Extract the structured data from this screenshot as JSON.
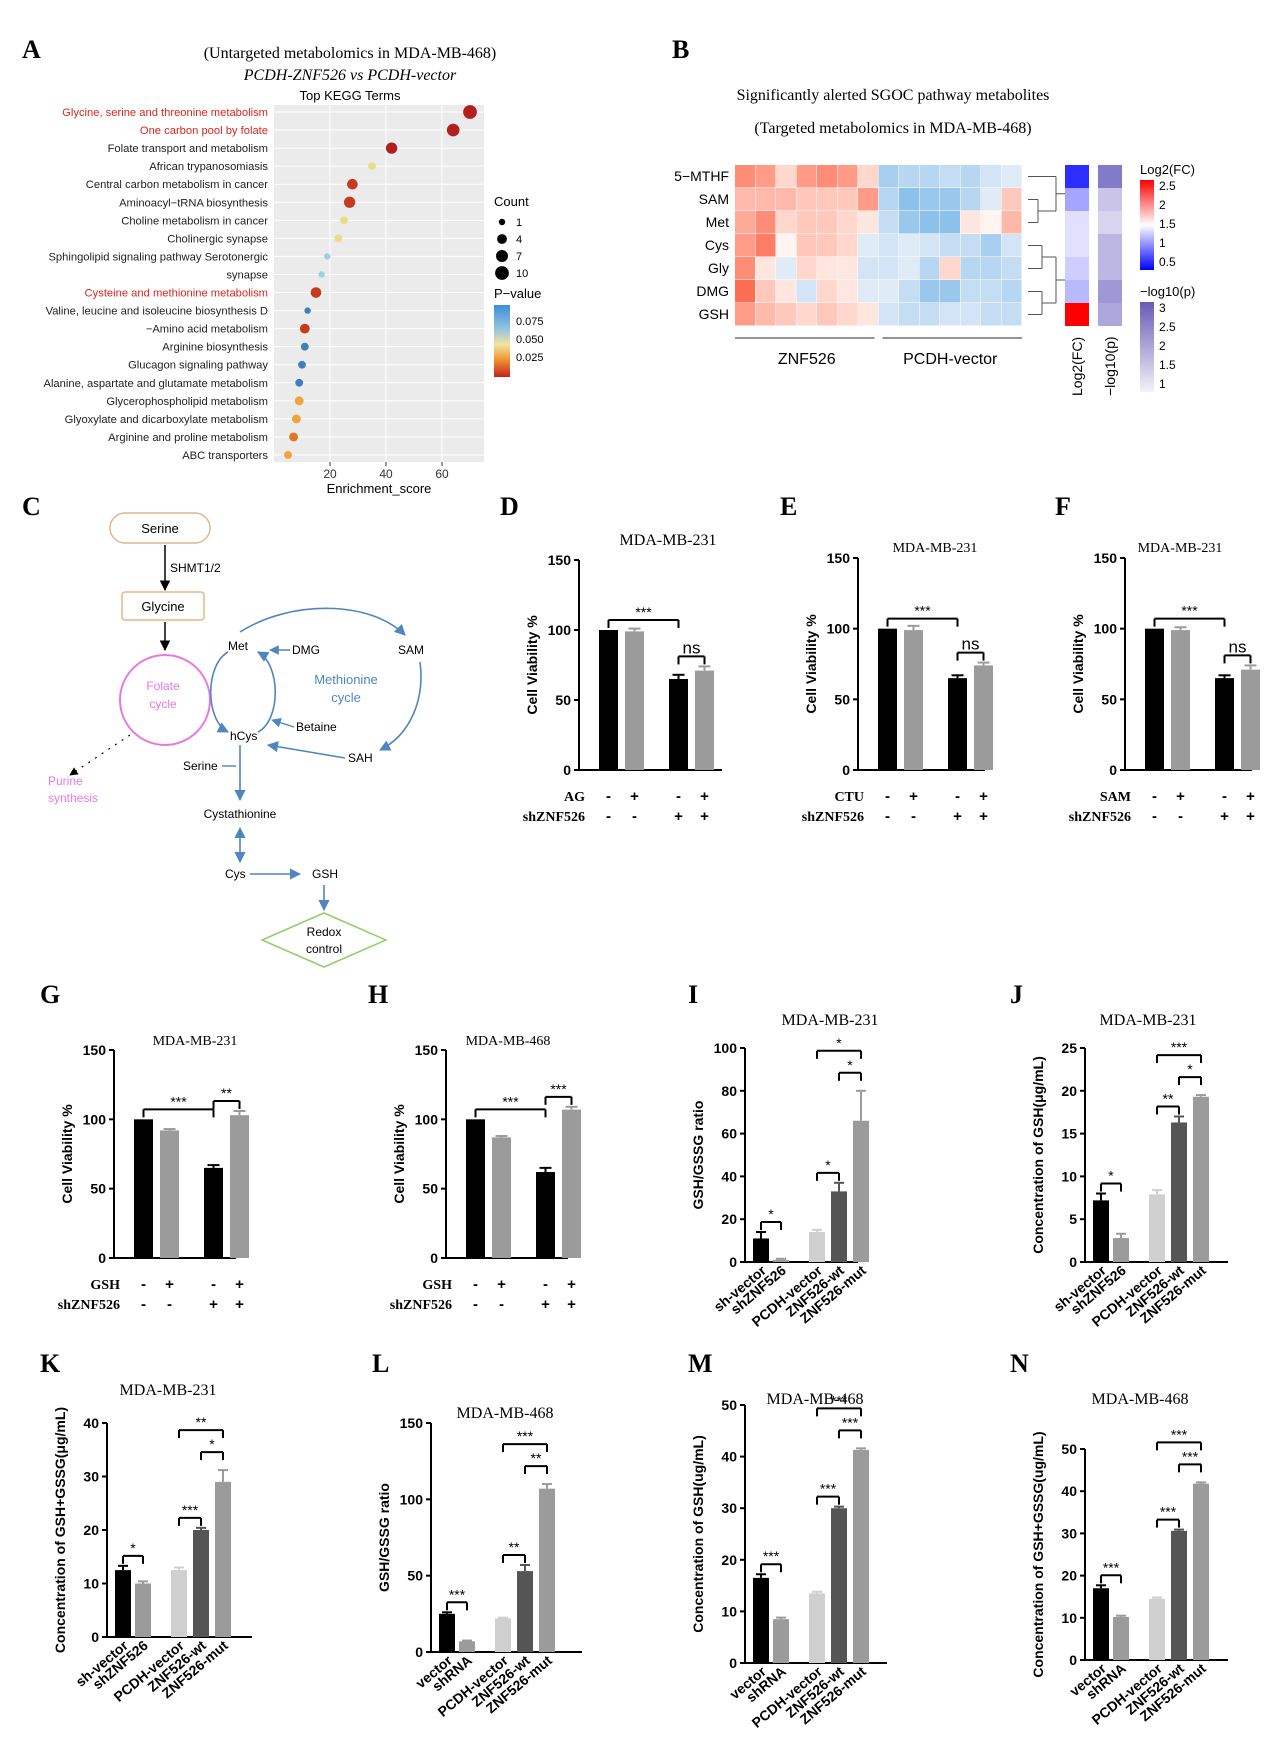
{
  "figure": {
    "panel_letters": [
      "A",
      "B",
      "C",
      "D",
      "E",
      "F",
      "G",
      "H",
      "I",
      "J",
      "K",
      "L",
      "M",
      "N"
    ]
  },
  "colors": {
    "black": "#000000",
    "mid_gray": "#9b9b9b",
    "dark_gray": "#555555",
    "light_gray": "#cfcfcf",
    "red_text": "#d9261c",
    "pink": "#e878e0",
    "blue_line": "#4f86c0",
    "green": "#8fce6a",
    "serine_border": "#e5b68a"
  },
  "chart_data": [
    {
      "id": "A",
      "type": "scatter",
      "title_lines": [
        "(Untargeted metabolomics in MDA-MB-468)",
        "PCDH-ZNF526 vs PCDH-vector"
      ],
      "subtitle": "Top KEGG Terms",
      "xlabel": "Enrichment_score",
      "xlim": [
        0,
        75
      ],
      "xticks": [
        20,
        40,
        60
      ],
      "terms": [
        {
          "name": "Glycine, serine and threonine metabolism",
          "score": 70,
          "count": 10,
          "p": 0.001,
          "highlight": true
        },
        {
          "name": "One carbon pool by folate",
          "score": 64,
          "count": 8,
          "p": 0.002,
          "highlight": true
        },
        {
          "name": "Folate transport and metabolism",
          "score": 42,
          "count": 6,
          "p": 0.005,
          "highlight": false
        },
        {
          "name": "African trypanosomiasis",
          "score": 35,
          "count": 2,
          "p": 0.05,
          "highlight": false
        },
        {
          "name": "Central carbon metabolism in cancer",
          "score": 28,
          "count": 5,
          "p": 0.01,
          "highlight": false
        },
        {
          "name": "Aminoacyl−tRNA biosynthesis",
          "score": 27,
          "count": 6,
          "p": 0.012,
          "highlight": false
        },
        {
          "name": "Choline metabolism in cancer",
          "score": 25,
          "count": 2,
          "p": 0.06,
          "highlight": false
        },
        {
          "name": "Cholinergic synapse",
          "score": 23,
          "count": 2,
          "p": 0.06,
          "highlight": false
        },
        {
          "name": "Sphingolipid signaling pathway Serotonergic",
          "score": 19,
          "count": 1,
          "p": 0.07,
          "highlight": false
        },
        {
          "name": "synapse",
          "score": 17,
          "count": 1,
          "p": 0.075,
          "highlight": false
        },
        {
          "name": "Cysteine and methionine metabolism",
          "score": 15,
          "count": 5,
          "p": 0.01,
          "highlight": true
        },
        {
          "name": "Valine, leucine and isoleucine biosynthesis D",
          "score": 12,
          "count": 1,
          "p": 0.085,
          "highlight": false
        },
        {
          "name": "−Amino acid metabolism",
          "score": 11,
          "count": 4,
          "p": 0.012,
          "highlight": false
        },
        {
          "name": "Arginine biosynthesis",
          "score": 11,
          "count": 2,
          "p": 0.08,
          "highlight": false
        },
        {
          "name": "Glucagon signaling pathway",
          "score": 10,
          "count": 2,
          "p": 0.08,
          "highlight": false
        },
        {
          "name": "Alanine, aspartate and glutamate metabolism",
          "score": 9,
          "count": 2,
          "p": 0.085,
          "highlight": false
        },
        {
          "name": "Glycerophospholipid metabolism",
          "score": 9,
          "count": 3,
          "p": 0.035,
          "highlight": false
        },
        {
          "name": "Glyoxylate and dicarboxylate metabolism",
          "score": 8,
          "count": 3,
          "p": 0.035,
          "highlight": false
        },
        {
          "name": "Arginine and proline metabolism",
          "score": 7,
          "count": 3,
          "p": 0.03,
          "highlight": false
        },
        {
          "name": "ABC transporters",
          "score": 5,
          "count": 2,
          "p": 0.04,
          "highlight": false
        }
      ],
      "legend_count_title": "Count",
      "legend_count_values": [
        1,
        4,
        7,
        10
      ],
      "legend_p_title": "P−value",
      "legend_p_values": [
        "0.075",
        "0.050",
        "0.025"
      ]
    },
    {
      "id": "B",
      "type": "heatmap",
      "title_lines": [
        "Significantly alerted SGOC pathway metabolites",
        "(Targeted metabolomics in MDA-MB-468)"
      ],
      "rows": [
        "5−MTHF",
        "SAM",
        "Met",
        "Cys",
        "Gly",
        "DMG",
        "GSH"
      ],
      "groups": [
        "ZNF526",
        "PCDH-vector"
      ],
      "values": [
        [
          0.7,
          0.6,
          0.2,
          0.6,
          0.7,
          0.6,
          0.2,
          -0.5,
          -0.4,
          -0.4,
          -0.3,
          -0.4,
          -0.2,
          -0.1
        ],
        [
          0.4,
          0.4,
          0.4,
          0.3,
          0.3,
          0.3,
          0.6,
          -0.4,
          -0.7,
          -0.6,
          -0.6,
          -0.4,
          -0.1,
          0.3
        ],
        [
          0.5,
          0.7,
          0.2,
          0.3,
          0.3,
          0.2,
          0.1,
          -0.3,
          -0.6,
          -0.7,
          -0.7,
          0.1,
          0.0,
          0.4
        ],
        [
          0.6,
          0.8,
          0.0,
          0.3,
          0.3,
          0.2,
          -0.1,
          -0.2,
          -0.1,
          -0.2,
          -0.3,
          -0.3,
          -0.5,
          -0.2
        ],
        [
          0.7,
          0.1,
          -0.1,
          0.2,
          0.1,
          0.1,
          -0.2,
          -0.2,
          -0.1,
          -0.4,
          0.2,
          -0.4,
          -0.4,
          -0.3
        ],
        [
          0.9,
          0.3,
          0.1,
          -0.2,
          0.2,
          0.1,
          -0.1,
          -0.1,
          -0.3,
          -0.6,
          -0.6,
          -0.3,
          -0.3,
          -0.4
        ],
        [
          0.6,
          0.4,
          0.3,
          0.2,
          0.3,
          0.2,
          0.1,
          -0.2,
          -0.3,
          -0.3,
          -0.2,
          -0.2,
          -0.3,
          -0.3
        ]
      ],
      "log2fc": [
        0.5,
        1.1,
        1.4,
        1.4,
        1.3,
        1.2,
        2.5
      ],
      "neglog10p": [
        2.6,
        1.6,
        1.4,
        1.8,
        1.8,
        2.2,
        2.0
      ],
      "side_labels": [
        "Log2(FC)",
        "−log10(p)"
      ],
      "legend_fc_title": "Log2(FC)",
      "legend_fc_ticks": [
        "2.5",
        "2",
        "1.5",
        "1",
        "0.5"
      ],
      "legend_p_title": "−log10(p)",
      "legend_p_ticks": [
        "3",
        "2.5",
        "2",
        "1.5",
        "1"
      ]
    },
    {
      "id": "C",
      "type": "pathway",
      "nodes": {
        "serine": "Serine",
        "shmt": "SHMT1/2",
        "glycine": "Glycine",
        "folate": "Folate cycle",
        "met": "Met",
        "dmg": "DMG",
        "sam": "SAM",
        "methionine_cycle": "Methionine cycle",
        "betaine": "Betaine",
        "hcys": "hCys",
        "sah": "SAH",
        "serine2": "Serine",
        "purine": "Purine synthesis",
        "cystathionine": "Cystathionine",
        "cys": "Cys",
        "gsh": "GSH",
        "redox": "Redox control"
      }
    },
    {
      "id": "D",
      "type": "bar",
      "title": "MDA-MB-231",
      "ylabel": "Cell Viability %",
      "ylim": [
        0,
        150
      ],
      "yticks": [
        0,
        50,
        100,
        150
      ],
      "values": [
        100,
        99,
        65,
        71
      ],
      "errors": [
        0,
        2,
        3,
        3
      ],
      "treatment_label": "AG",
      "treatment_signs": [
        "-",
        "+",
        "-",
        "+"
      ],
      "sh_label": "shZNF526",
      "sh_signs": [
        "-",
        "-",
        "+",
        "+"
      ],
      "sig": [
        {
          "from": 0,
          "to": 2,
          "label": "***"
        },
        {
          "from": 2,
          "to": 3,
          "label": "ns"
        }
      ]
    },
    {
      "id": "E",
      "type": "bar",
      "title": "MDA-MB-231",
      "ylabel": "Cell Viability %",
      "ylim": [
        0,
        150
      ],
      "yticks": [
        0,
        50,
        100,
        150
      ],
      "values": [
        100,
        99,
        65,
        74
      ],
      "errors": [
        0,
        3,
        2,
        2
      ],
      "treatment_label": "CTU",
      "treatment_signs": [
        "-",
        "+",
        "-",
        "+"
      ],
      "sh_label": "shZNF526",
      "sh_signs": [
        "-",
        "-",
        "+",
        "+"
      ],
      "sig": [
        {
          "from": 0,
          "to": 2,
          "label": "***"
        },
        {
          "from": 2,
          "to": 3,
          "label": "ns"
        }
      ]
    },
    {
      "id": "F",
      "type": "bar",
      "title": "MDA-MB-231",
      "ylabel": "Cell Viability %",
      "ylim": [
        0,
        150
      ],
      "yticks": [
        0,
        50,
        100,
        150
      ],
      "values": [
        100,
        99,
        65,
        71
      ],
      "errors": [
        0,
        2,
        2,
        3
      ],
      "treatment_label": "SAM",
      "treatment_signs": [
        "-",
        "+",
        "-",
        "+"
      ],
      "sh_label": "shZNF526",
      "sh_signs": [
        "-",
        "-",
        "+",
        "+"
      ],
      "sig": [
        {
          "from": 0,
          "to": 2,
          "label": "***"
        },
        {
          "from": 2,
          "to": 3,
          "label": "ns"
        }
      ]
    },
    {
      "id": "G",
      "type": "bar",
      "title": "MDA-MB-231",
      "ylabel": "Cell Viability %",
      "ylim": [
        0,
        150
      ],
      "yticks": [
        0,
        50,
        100,
        150
      ],
      "values": [
        100,
        92,
        65,
        103
      ],
      "errors": [
        0,
        1,
        2,
        3
      ],
      "treatment_label": "GSH",
      "treatment_signs": [
        "-",
        "+",
        "-",
        "+"
      ],
      "sh_label": "shZNF526",
      "sh_signs": [
        "-",
        "-",
        "+",
        "+"
      ],
      "sig": [
        {
          "from": 0,
          "to": 2,
          "label": "***"
        },
        {
          "from": 2,
          "to": 3,
          "label": "**"
        }
      ]
    },
    {
      "id": "H",
      "type": "bar",
      "title": "MDA-MB-468",
      "ylabel": "Cell Viability %",
      "ylim": [
        0,
        150
      ],
      "yticks": [
        0,
        50,
        100,
        150
      ],
      "values": [
        100,
        87,
        62,
        107
      ],
      "errors": [
        0,
        1,
        3,
        2
      ],
      "treatment_label": "GSH",
      "treatment_signs": [
        "-",
        "+",
        "-",
        "+"
      ],
      "sh_label": "shZNF526",
      "sh_signs": [
        "-",
        "-",
        "+",
        "+"
      ],
      "sig": [
        {
          "from": 0,
          "to": 2,
          "label": "***"
        },
        {
          "from": 2,
          "to": 3,
          "label": "***"
        }
      ]
    },
    {
      "id": "I",
      "type": "bar",
      "title": "MDA-MB-231",
      "ylabel": "GSH/GSSG ratio",
      "ylim": [
        0,
        100
      ],
      "yticks": [
        0,
        20,
        40,
        60,
        80,
        100
      ],
      "categories": [
        "sh-vector",
        "shZNF526",
        "PCDH-vector",
        "ZNF526-wt",
        "ZNF526-mut"
      ],
      "values": [
        11,
        1,
        14,
        33,
        66
      ],
      "errors": [
        3,
        0.5,
        1,
        4,
        14
      ],
      "sig": [
        {
          "from": 0,
          "to": 1,
          "label": "*",
          "level": 0
        },
        {
          "from": 2,
          "to": 3,
          "label": "*",
          "level": 0
        },
        {
          "from": 3,
          "to": 4,
          "label": "*",
          "level": 1
        },
        {
          "from": 2,
          "to": 4,
          "label": "*",
          "level": 2
        }
      ]
    },
    {
      "id": "J",
      "type": "bar",
      "title": "MDA-MB-231",
      "ylabel": "Concentration of GSH(μg/mL)",
      "ylim": [
        0,
        25
      ],
      "yticks": [
        0,
        5,
        10,
        15,
        20,
        25
      ],
      "categories": [
        "sh-vector",
        "shZNF526",
        "PCDH-vector",
        "ZNF526-wt",
        "ZNF526-mut"
      ],
      "values": [
        7.2,
        2.8,
        7.9,
        16.3,
        19.3
      ],
      "errors": [
        0.8,
        0.5,
        0.5,
        0.7,
        0.2
      ],
      "sig": [
        {
          "from": 0,
          "to": 1,
          "label": "*",
          "level": 0
        },
        {
          "from": 2,
          "to": 3,
          "label": "**",
          "level": 0
        },
        {
          "from": 3,
          "to": 4,
          "label": "*",
          "level": 1
        },
        {
          "from": 2,
          "to": 4,
          "label": "***",
          "level": 2
        }
      ]
    },
    {
      "id": "K",
      "type": "bar",
      "title": "MDA-MB-231",
      "ylabel": "Concentration of GSH+GSSG(μg/mL)",
      "ylim": [
        0,
        40
      ],
      "yticks": [
        0,
        10,
        20,
        30,
        40
      ],
      "categories": [
        "sh-vector",
        "shZNF526",
        "PCDH-vector",
        "ZNF526-wt",
        "ZNF526-mut"
      ],
      "values": [
        12.5,
        10,
        12.5,
        20,
        29
      ],
      "errors": [
        0.8,
        0.4,
        0.5,
        0.4,
        2.2
      ],
      "sig": [
        {
          "from": 0,
          "to": 1,
          "label": "*",
          "level": 0
        },
        {
          "from": 2,
          "to": 3,
          "label": "***",
          "level": 0
        },
        {
          "from": 3,
          "to": 4,
          "label": "*",
          "level": 1
        },
        {
          "from": 2,
          "to": 4,
          "label": "**",
          "level": 2
        }
      ]
    },
    {
      "id": "L",
      "type": "bar",
      "title": "MDA-MB-468",
      "ylabel": "GSH/GSSG ratio",
      "ylim": [
        0,
        150
      ],
      "yticks": [
        0,
        50,
        100,
        150
      ],
      "categories": [
        "vector",
        "shRNA",
        "PCDH-vector",
        "ZNF526-wt",
        "ZNF526-mut"
      ],
      "values": [
        25,
        7,
        22,
        53,
        107
      ],
      "errors": [
        1,
        0.5,
        0.5,
        4,
        3
      ],
      "sig": [
        {
          "from": 0,
          "to": 1,
          "label": "***",
          "level": 0
        },
        {
          "from": 2,
          "to": 3,
          "label": "**",
          "level": 0
        },
        {
          "from": 3,
          "to": 4,
          "label": "**",
          "level": 1
        },
        {
          "from": 2,
          "to": 4,
          "label": "***",
          "level": 2
        }
      ]
    },
    {
      "id": "M",
      "type": "bar",
      "title": "MDA-MB-468",
      "ylabel": "Concentration of GSH(ug/mL)",
      "ylim": [
        0,
        50
      ],
      "yticks": [
        0,
        10,
        20,
        30,
        40,
        50
      ],
      "categories": [
        "vector",
        "shRNA",
        "PCDH-vector",
        "ZNF526-wt",
        "ZNF526-mut"
      ],
      "values": [
        16.5,
        8.5,
        13.5,
        30,
        41.3
      ],
      "errors": [
        0.7,
        0.3,
        0.3,
        0.3,
        0.3
      ],
      "sig": [
        {
          "from": 0,
          "to": 1,
          "label": "***",
          "level": 0
        },
        {
          "from": 2,
          "to": 3,
          "label": "***",
          "level": 0
        },
        {
          "from": 3,
          "to": 4,
          "label": "***",
          "level": 1
        },
        {
          "from": 2,
          "to": 4,
          "label": "***",
          "level": 2
        }
      ]
    },
    {
      "id": "N",
      "type": "bar",
      "title": "MDA-MB-468",
      "ylabel": "Concentration of GSH+GSSG(ug/mL)",
      "ylim": [
        0,
        50
      ],
      "yticks": [
        0,
        10,
        20,
        30,
        40,
        50
      ],
      "categories": [
        "vector",
        "shRNA",
        "PCDH-vector",
        "ZNF526-wt",
        "ZNF526-mut"
      ],
      "values": [
        17,
        10.2,
        14.5,
        30.6,
        41.8
      ],
      "errors": [
        0.7,
        0.3,
        0.3,
        0.3,
        0.3
      ],
      "sig": [
        {
          "from": 0,
          "to": 1,
          "label": "***",
          "level": 0
        },
        {
          "from": 2,
          "to": 3,
          "label": "***",
          "level": 0
        },
        {
          "from": 3,
          "to": 4,
          "label": "***",
          "level": 1
        },
        {
          "from": 2,
          "to": 4,
          "label": "***",
          "level": 2
        }
      ]
    }
  ]
}
